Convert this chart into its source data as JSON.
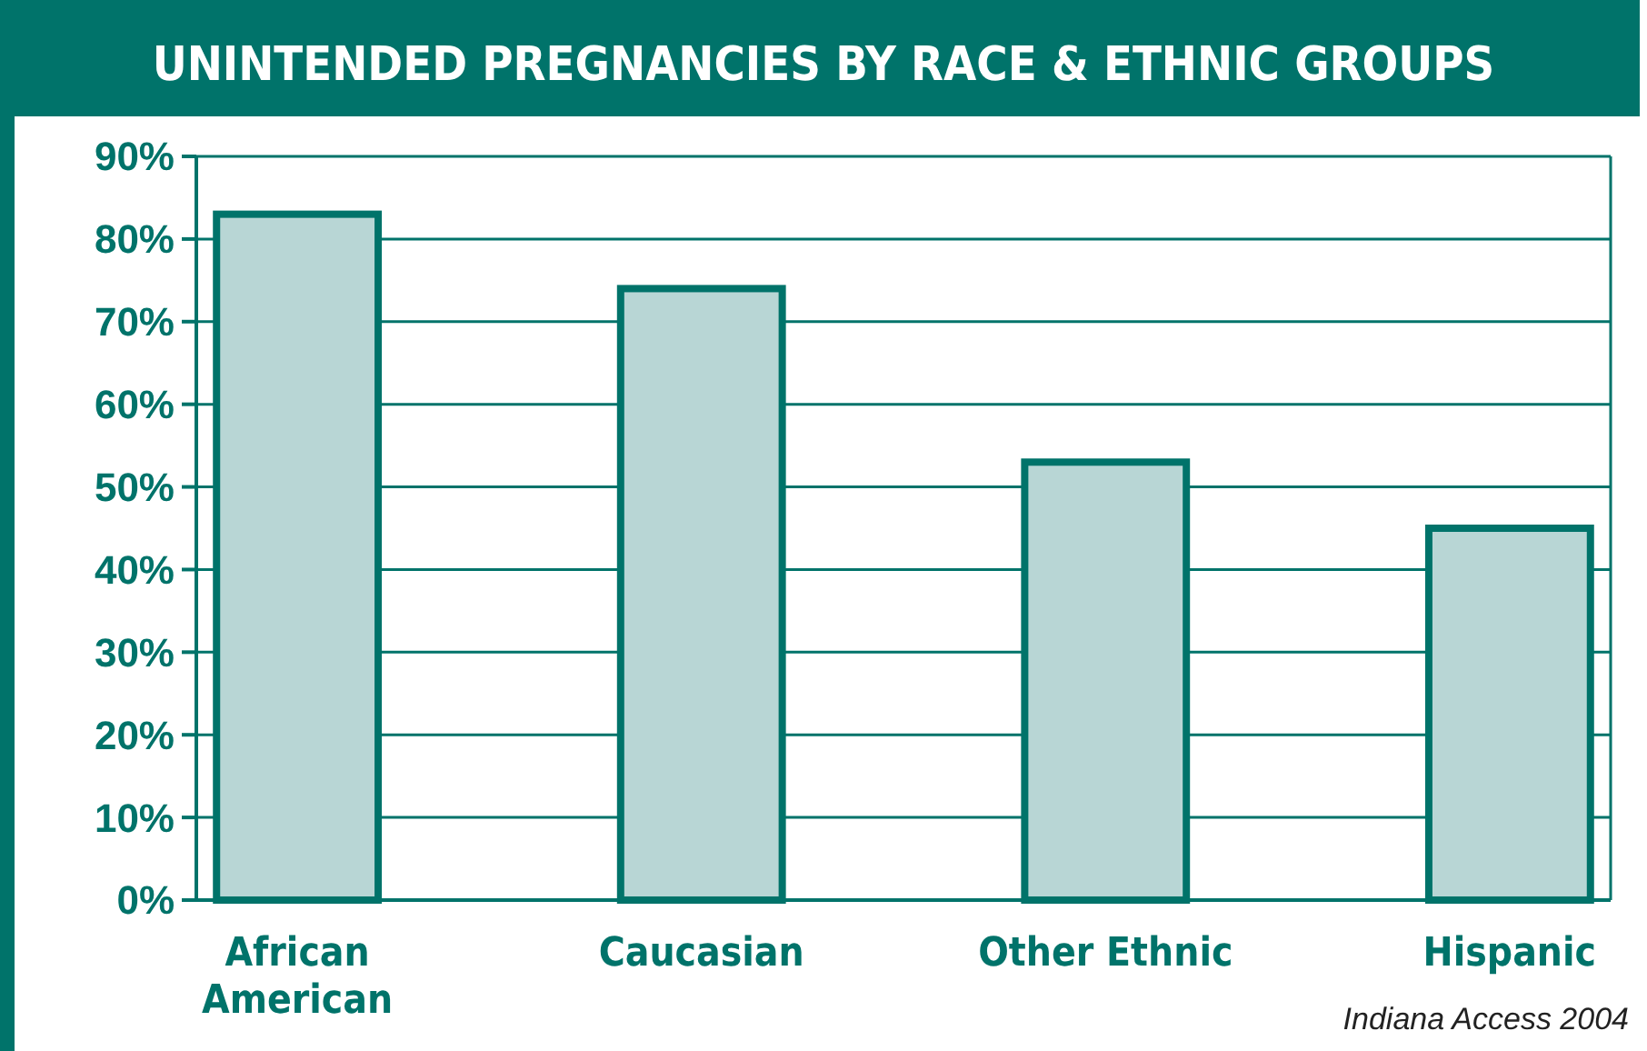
{
  "chart_data": {
    "type": "bar",
    "title": "UNINTENDED PREGNANCIES BY RACE & ETHNIC GROUPS",
    "categories": [
      "African American",
      "Caucasian",
      "Other Ethnic",
      "Hispanic"
    ],
    "values": [
      83,
      74,
      53,
      45
    ],
    "color": "#b8d6d5",
    "ylim": [
      0,
      90
    ],
    "yticks": [
      {
        "value": 0,
        "label": "0%"
      },
      {
        "value": 10,
        "label": "10%"
      },
      {
        "value": 20,
        "label": "20%"
      },
      {
        "value": 30,
        "label": "30%"
      },
      {
        "value": 40,
        "label": "40%"
      },
      {
        "value": 50,
        "label": "50%"
      },
      {
        "value": 60,
        "label": "60%"
      },
      {
        "value": 70,
        "label": "70%"
      },
      {
        "value": 80,
        "label": "80%"
      },
      {
        "value": 90,
        "label": "90%"
      }
    ],
    "grid": "y",
    "annotations": [
      "Indiana Access 2004"
    ]
  }
}
